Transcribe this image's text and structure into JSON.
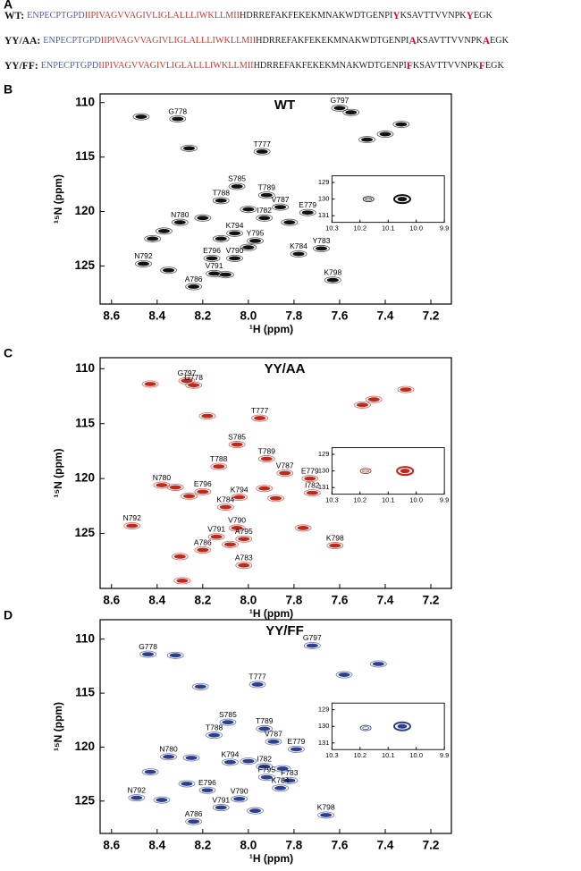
{
  "sequences": {
    "panel_label": "A",
    "part_colors": [
      "#4a5fb0",
      "#d0382c",
      "#222222",
      "#c8102e",
      "#222222",
      "#c8102e",
      "#222222"
    ],
    "part_bold": [
      false,
      false,
      false,
      true,
      false,
      true,
      false
    ],
    "rows": [
      {
        "label": "WT:",
        "parts": [
          "ENPECPTGPD",
          "IIPIVAGVVAGIVLIGLALLLIWKLLMII",
          "HDRREFAKFEKEKMNAKWDTGENPI",
          "Y",
          "KSAVTTVVNPK",
          "Y",
          "EGK"
        ]
      },
      {
        "label": "YY/AA:",
        "parts": [
          "ENPECPTGPD",
          "IIPIVAGVVAGIVLIGLALLLIWKLLMII",
          "HDRREFAKFEKEKMNAKWDTGENPI",
          "A",
          "KSAVTTVVNPK",
          "A",
          "EGK"
        ]
      },
      {
        "label": "YY/FF:",
        "parts": [
          "ENPECPTGPD",
          "IIPIVAGVVAGIVLIGLALLLIWKLLMII",
          "HDRREFAKFEKEKMNAKWDTGENPI",
          "F",
          "KSAVTTVVNPK",
          "F",
          "EGK"
        ]
      }
    ]
  },
  "chart_data": [
    {
      "type": "scatter",
      "panel_label": "B",
      "title": "WT",
      "x_label": "¹H (ppm)",
      "y_label": "¹⁵N (ppm)",
      "color": "#111111",
      "xlim": [
        8.65,
        7.11
      ],
      "ylim": [
        109.2,
        128.5
      ],
      "xticks": [
        8.6,
        8.4,
        8.2,
        {
          "value": 8,
          "label": "8.0"
        },
        7.8,
        7.6,
        7.4,
        7.2
      ],
      "yticks": [
        110,
        115,
        120,
        125
      ],
      "x": [
        8.31,
        7.6,
        7.94,
        8.05,
        7.92,
        8.12,
        7.86,
        7.74,
        8.3,
        7.93,
        8.06,
        7.97,
        7.78,
        7.68,
        8.16,
        8.06,
        8.15,
        8.46,
        8.24,
        7.63,
        8.47,
        7.33,
        7.48,
        7.4,
        8.26,
        8.42,
        8.37,
        8.2,
        8.12,
        8.0,
        8.35,
        8.1,
        7.55,
        8.0,
        7.82
      ],
      "y": [
        111.5,
        110.5,
        114.5,
        117.7,
        118.5,
        119.0,
        119.6,
        120.1,
        121.0,
        120.6,
        122.0,
        122.7,
        123.9,
        123.4,
        124.3,
        124.3,
        125.7,
        124.8,
        126.9,
        126.3,
        111.3,
        112.0,
        113.4,
        112.9,
        114.2,
        122.5,
        121.8,
        120.6,
        122.5,
        123.3,
        125.4,
        125.8,
        110.9,
        119.8,
        121.0
      ],
      "labels": [
        "G778",
        "G797",
        "T777",
        "S785",
        "T789",
        "T788",
        "V787",
        "E779",
        "N780",
        "I782",
        "K794",
        "Y795",
        "K784",
        "Y783",
        "E796",
        "V790",
        "V791",
        "N792",
        "A786",
        "K798",
        null,
        null,
        null,
        null,
        null,
        null,
        null,
        null,
        null,
        null,
        null,
        null,
        null,
        null,
        null
      ],
      "inset": {
        "xlim": [
          10.3,
          9.9
        ],
        "ylim": [
          128.6,
          131.4
        ],
        "xticks": [
          10.3,
          10.2,
          10.1,
          {
            "value": 10,
            "label": "10.0"
          },
          9.9
        ],
        "yticks": [
          129,
          130,
          131
        ],
        "x": [
          10.17,
          10.05
        ],
        "y": [
          130.0,
          130.0
        ]
      }
    },
    {
      "type": "scatter",
      "panel_label": "C",
      "title": "YY/AA",
      "x_label": "¹H (ppm)",
      "y_label": "¹⁵N (ppm)",
      "color": "#c0281c",
      "xlim": [
        8.65,
        7.11
      ],
      "ylim": [
        109,
        130
      ],
      "xticks": [
        8.6,
        8.4,
        8.2,
        {
          "value": 8,
          "label": "8.0"
        },
        7.8,
        7.6,
        7.4,
        7.2
      ],
      "yticks": [
        110,
        115,
        120,
        125
      ],
      "x": [
        8.27,
        8.24,
        7.95,
        8.05,
        7.92,
        8.13,
        7.84,
        7.73,
        8.38,
        7.72,
        8.2,
        8.04,
        8.1,
        8.51,
        8.05,
        8.14,
        8.02,
        8.2,
        7.62,
        8.02,
        8.43,
        8.18,
        7.5,
        7.45,
        7.31,
        8.32,
        8.26,
        7.93,
        7.76,
        8.3,
        8.29,
        8.08,
        7.88
      ],
      "y": [
        111.1,
        111.5,
        114.5,
        116.9,
        118.2,
        118.9,
        119.5,
        120.0,
        120.6,
        121.3,
        121.2,
        121.7,
        122.6,
        124.3,
        124.5,
        125.3,
        125.5,
        126.5,
        126.1,
        127.9,
        111.4,
        114.3,
        113.3,
        112.8,
        111.9,
        120.8,
        121.6,
        120.9,
        124.5,
        127.1,
        129.3,
        126.0,
        121.8
      ],
      "labels": [
        "G797",
        "G778",
        "T777",
        "S785",
        "T789",
        "T788",
        "V787",
        "E779",
        "N780",
        "I782",
        "E796",
        "K794",
        "K784",
        "N792",
        "V790",
        "V791",
        "A795",
        "A786",
        "K798",
        "A783",
        null,
        null,
        null,
        null,
        null,
        null,
        null,
        null,
        null,
        null,
        null,
        null,
        null
      ],
      "inset": {
        "xlim": [
          10.3,
          9.9
        ],
        "ylim": [
          128.6,
          131.4
        ],
        "xticks": [
          10.3,
          10.2,
          10.1,
          {
            "value": 10,
            "label": "10.0"
          },
          9.9
        ],
        "yticks": [
          129,
          130,
          131
        ],
        "x": [
          10.18,
          10.04
        ],
        "y": [
          130.0,
          130.0
        ]
      }
    },
    {
      "type": "scatter",
      "panel_label": "D",
      "title": "YY/FF",
      "x_label": "¹H (ppm)",
      "y_label": "¹⁵N (ppm)",
      "color": "#2b3f8c",
      "xlim": [
        8.65,
        7.11
      ],
      "ylim": [
        108.2,
        128
      ],
      "xticks": [
        8.6,
        8.4,
        8.2,
        {
          "value": 8,
          "label": "8.0"
        },
        7.8,
        7.6,
        7.4,
        7.2
      ],
      "yticks": [
        110,
        115,
        120,
        125
      ],
      "x": [
        8.44,
        7.72,
        7.96,
        8.09,
        7.93,
        8.15,
        7.89,
        7.79,
        8.35,
        7.93,
        8.08,
        7.92,
        7.82,
        7.86,
        8.18,
        8.49,
        8.12,
        8.04,
        8.24,
        7.66,
        8.32,
        8.21,
        7.58,
        7.43,
        8.43,
        8.25,
        8.0,
        7.85,
        8.38,
        7.97,
        8.27
      ],
      "y": [
        111.4,
        110.6,
        114.2,
        117.7,
        118.3,
        118.9,
        119.5,
        120.2,
        120.9,
        121.8,
        121.4,
        122.8,
        123.1,
        123.8,
        124.0,
        124.7,
        125.6,
        124.8,
        126.9,
        126.3,
        111.5,
        114.4,
        113.3,
        112.3,
        122.3,
        121.0,
        121.3,
        122.0,
        124.9,
        125.9,
        123.4
      ],
      "labels": [
        "G778",
        "G797",
        "T777",
        "S785",
        "T789",
        "T788",
        "V787",
        "E779",
        "N780",
        "I782",
        "K794",
        "F795",
        "F783",
        "K784",
        "E796",
        "N792",
        "V791",
        "V790",
        "A786",
        "K798",
        null,
        null,
        null,
        null,
        null,
        null,
        null,
        null,
        null,
        null,
        null
      ],
      "inset": {
        "xlim": [
          10.3,
          9.9
        ],
        "ylim": [
          128.6,
          131.4
        ],
        "xticks": [
          10.3,
          10.2,
          10.1,
          {
            "value": 10,
            "label": "10.0"
          },
          9.9
        ],
        "yticks": [
          129,
          130,
          131
        ],
        "x": [
          10.18,
          10.05
        ],
        "y": [
          130.1,
          130.0
        ]
      }
    }
  ]
}
